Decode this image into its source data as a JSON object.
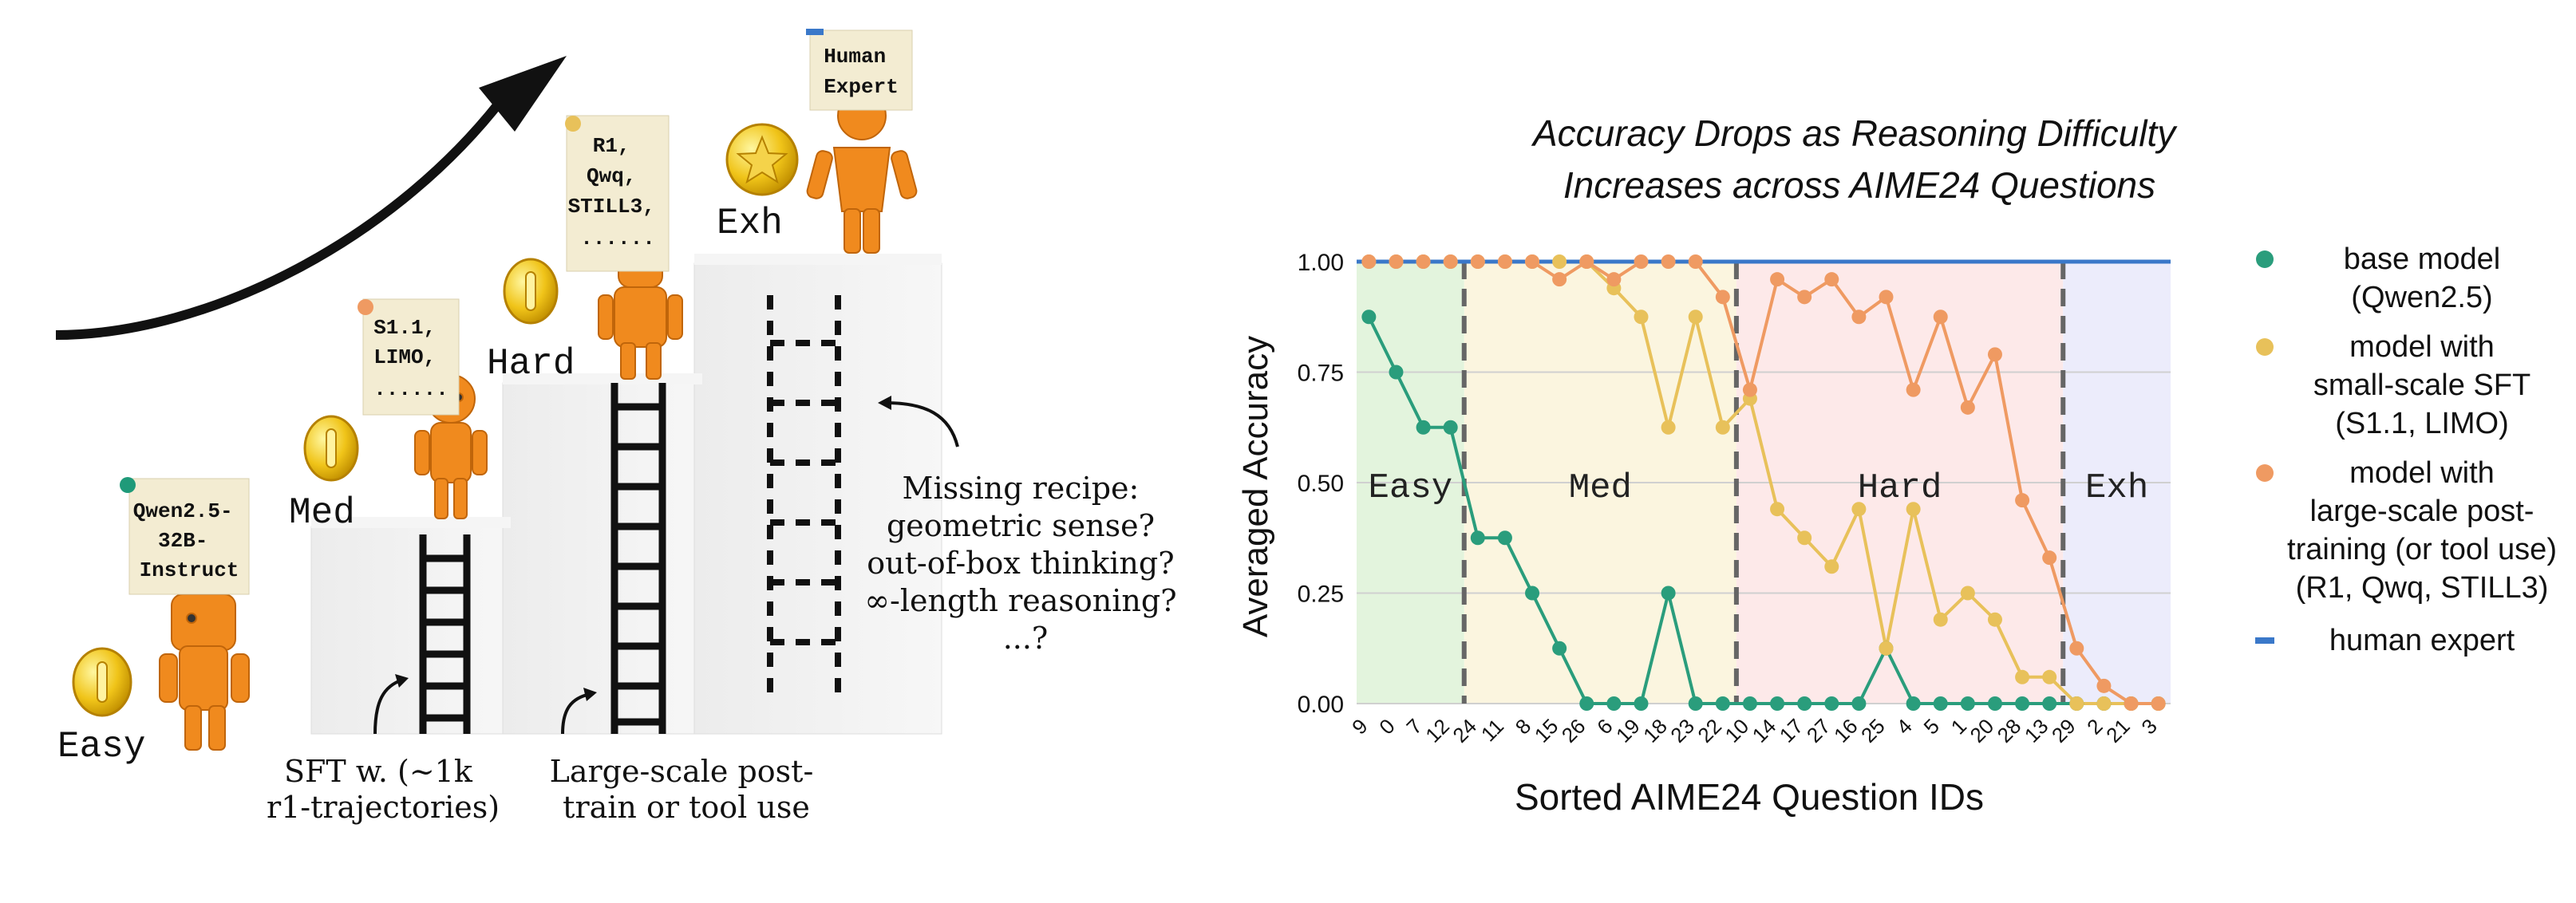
{
  "illustration": {
    "stages": [
      {
        "label": "Easy",
        "note": [
          "Qwen2.5-",
          "32B-",
          "Instruct"
        ]
      },
      {
        "label": "Med",
        "note": [
          "S1.1,",
          "LIMO,",
          "......"
        ]
      },
      {
        "label": "Hard",
        "note": [
          "R1,",
          "Qwq,",
          "STILL3,",
          "......"
        ]
      },
      {
        "label": "Exh",
        "note": [
          "Human",
          "Expert"
        ]
      }
    ],
    "captions": {
      "sft": [
        "SFT w. (~1k",
        "r1-trajectories)"
      ],
      "large": [
        "Large-scale post-",
        "train or tool use"
      ],
      "missing": [
        "Missing recipe:",
        "geometric sense?",
        "out-of-box thinking?",
        "∞-length reasoning?",
        "...?"
      ]
    },
    "colors": {
      "robot": "#f08a1e",
      "coin": "#e6b800",
      "note": "#f3ecd2",
      "block": "#eeeeee"
    }
  },
  "chart_data": {
    "type": "line",
    "title": [
      "Accuracy Drops as Reasoning Difficulty",
      "Increases across AIME24 Questions"
    ],
    "xlabel": "Sorted AIME24 Question IDs",
    "ylabel": "Averaged Accuracy",
    "ylim": [
      0,
      1
    ],
    "yticks": [
      "0.00",
      "0.25",
      "0.50",
      "0.75",
      "1.00"
    ],
    "categories": [
      "9",
      "0",
      "7",
      "12",
      "24",
      "11",
      "8",
      "15",
      "26",
      "6",
      "19",
      "18",
      "23",
      "22",
      "10",
      "14",
      "17",
      "27",
      "16",
      "25",
      "4",
      "5",
      "1",
      "20",
      "28",
      "13",
      "29",
      "2",
      "21",
      "3"
    ],
    "regions": [
      {
        "label": "Easy",
        "start": 0,
        "end": 3,
        "color": "#e3f4dd"
      },
      {
        "label": "Med",
        "start": 4,
        "end": 13,
        "color": "#fbf5df"
      },
      {
        "label": "Hard",
        "start": 14,
        "end": 25,
        "color": "#fde9e9"
      },
      {
        "label": "Exh",
        "start": 26,
        "end": 29,
        "color": "#ececfb"
      }
    ],
    "series": [
      {
        "name": "base model (Qwen2.5)",
        "legend": [
          "base model",
          "(Qwen2.5)"
        ],
        "color": "#2a9d7c",
        "values": [
          0.875,
          0.75,
          0.625,
          0.625,
          0.375,
          0.375,
          0.25,
          0.125,
          0,
          0,
          0,
          0.25,
          0,
          0,
          0,
          0,
          0,
          0,
          0,
          0.125,
          0,
          0,
          0,
          0,
          0,
          0,
          0,
          0,
          0,
          0
        ]
      },
      {
        "name": "model with small-scale SFT (S1.1, LIMO)",
        "legend": [
          "model with",
          "small-scale SFT",
          "(S1.1, LIMO)"
        ],
        "color": "#e8c15a",
        "values": [
          1,
          1,
          1,
          1,
          1,
          1,
          1,
          1,
          1,
          0.94,
          0.875,
          0.625,
          0.875,
          0.625,
          0.69,
          0.44,
          0.375,
          0.31,
          0.44,
          0.125,
          0.44,
          0.19,
          0.25,
          0.19,
          0.06,
          0.06,
          0,
          0,
          0,
          0
        ]
      },
      {
        "name": "model with large-scale post-training (or tool use) (R1, Qwq, STILL3)",
        "legend": [
          "model with",
          "large-scale post-",
          "training (or tool use)",
          "(R1, Qwq, STILL3)"
        ],
        "color": "#ef9a62",
        "values": [
          1,
          1,
          1,
          1,
          1,
          1,
          1,
          0.96,
          1,
          0.96,
          1,
          1,
          1,
          0.92,
          0.71,
          0.96,
          0.92,
          0.96,
          0.875,
          0.92,
          0.71,
          0.875,
          0.67,
          0.79,
          0.46,
          0.33,
          0.125,
          0.04,
          0,
          0
        ]
      },
      {
        "name": "human expert",
        "legend": [
          "human expert"
        ],
        "color": "#3a78c9",
        "marker": "none",
        "values": [
          1,
          1,
          1,
          1,
          1,
          1,
          1,
          1,
          1,
          1,
          1,
          1,
          1,
          1,
          1,
          1,
          1,
          1,
          1,
          1,
          1,
          1,
          1,
          1,
          1,
          1,
          1,
          1,
          1,
          1
        ]
      }
    ],
    "legend_position": "right",
    "grid": true
  }
}
